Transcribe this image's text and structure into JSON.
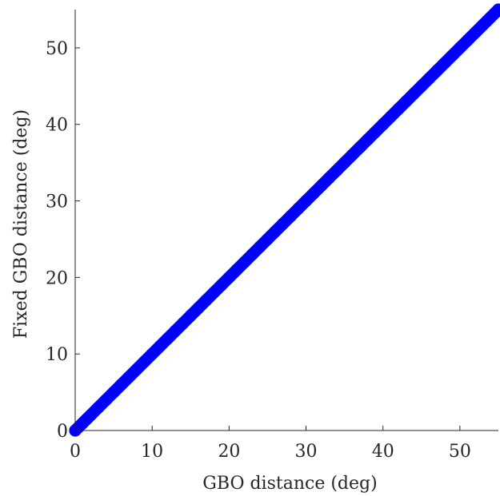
{
  "chart_data": {
    "type": "scatter",
    "title": "",
    "xlabel": "GBO distance (deg)",
    "ylabel": "Fixed GBO distance (deg)",
    "xlim": [
      0,
      55
    ],
    "ylim": [
      0,
      55
    ],
    "xticks": [
      0,
      10,
      20,
      30,
      40,
      50
    ],
    "yticks": [
      0,
      10,
      20,
      30,
      40,
      50
    ],
    "grid": false,
    "legend": "none",
    "marker": "circle",
    "marker_color": "#0000ff",
    "series": [
      {
        "x": [
          0,
          0.5,
          1,
          1.5,
          2,
          3,
          4,
          5,
          6,
          7,
          8,
          9,
          10,
          11,
          12,
          13,
          14,
          15,
          16,
          17,
          18,
          19,
          20,
          21,
          22,
          23,
          24,
          25,
          26,
          27,
          28,
          29,
          30,
          31,
          32,
          33,
          34,
          35,
          36,
          37,
          38,
          39,
          40,
          41,
          42,
          43,
          44,
          45,
          46,
          47,
          48,
          49,
          50,
          51,
          52,
          53,
          53.5,
          54,
          54.5,
          55
        ],
        "y": [
          0,
          0.5,
          1,
          1.5,
          2,
          3,
          4,
          5,
          6,
          7,
          8,
          9,
          10,
          11,
          12,
          13,
          14,
          15,
          16,
          17,
          18,
          19,
          20,
          21,
          22,
          23,
          24,
          25,
          26,
          27,
          28,
          29,
          30,
          31,
          32,
          33,
          34,
          35,
          36,
          37,
          38,
          39,
          40,
          41,
          42,
          43,
          44,
          45,
          46,
          47,
          48,
          49,
          50,
          51,
          52,
          53,
          53.5,
          54,
          54.5,
          55
        ]
      }
    ]
  }
}
